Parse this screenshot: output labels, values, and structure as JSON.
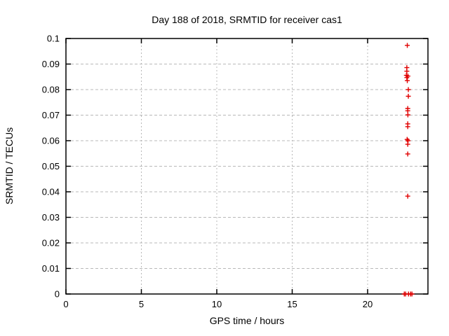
{
  "chart_data": {
    "type": "scatter",
    "title": "Day 188 of 2018, SRMTID for receiver cas1",
    "xlabel": "GPS time / hours",
    "ylabel": "SRMTID / TECUs",
    "xlim": [
      0,
      24
    ],
    "ylim": [
      0,
      0.1
    ],
    "xticks": [
      {
        "v": 0,
        "label": "0"
      },
      {
        "v": 5,
        "label": "5"
      },
      {
        "v": 10,
        "label": "10"
      },
      {
        "v": 15,
        "label": "15"
      },
      {
        "v": 20,
        "label": "20"
      }
    ],
    "yticks": [
      {
        "v": 0.0,
        "label": "0"
      },
      {
        "v": 0.01,
        "label": "0.01"
      },
      {
        "v": 0.02,
        "label": "0.02"
      },
      {
        "v": 0.03,
        "label": "0.03"
      },
      {
        "v": 0.04,
        "label": "0.04"
      },
      {
        "v": 0.05,
        "label": "0.05"
      },
      {
        "v": 0.06,
        "label": "0.06"
      },
      {
        "v": 0.07,
        "label": "0.07"
      },
      {
        "v": 0.08,
        "label": "0.08"
      },
      {
        "v": 0.09,
        "label": "0.09"
      },
      {
        "v": 0.1,
        "label": "0.1"
      }
    ],
    "grid": "dashed-both-axes",
    "grid_color": "#b8b8b8",
    "axis_color": "#000000",
    "marker": "plus",
    "marker_color": "#e00000",
    "legend": "none",
    "points": [
      [
        22.63,
        0.0973
      ],
      [
        22.6,
        0.0886
      ],
      [
        22.6,
        0.0872
      ],
      [
        22.57,
        0.0856
      ],
      [
        22.67,
        0.0853
      ],
      [
        22.6,
        0.0847
      ],
      [
        22.63,
        0.0835
      ],
      [
        22.7,
        0.08
      ],
      [
        22.7,
        0.0774
      ],
      [
        22.66,
        0.0726
      ],
      [
        22.66,
        0.0717
      ],
      [
        22.67,
        0.0701
      ],
      [
        22.66,
        0.0666
      ],
      [
        22.66,
        0.0655
      ],
      [
        22.62,
        0.0605
      ],
      [
        22.68,
        0.06
      ],
      [
        22.66,
        0.0586
      ],
      [
        22.66,
        0.0548
      ],
      [
        22.66,
        0.0383
      ],
      [
        22.43,
        0.0
      ],
      [
        22.52,
        0.0
      ],
      [
        22.71,
        0.0
      ],
      [
        22.85,
        0.0
      ],
      [
        22.94,
        0.0
      ]
    ]
  }
}
